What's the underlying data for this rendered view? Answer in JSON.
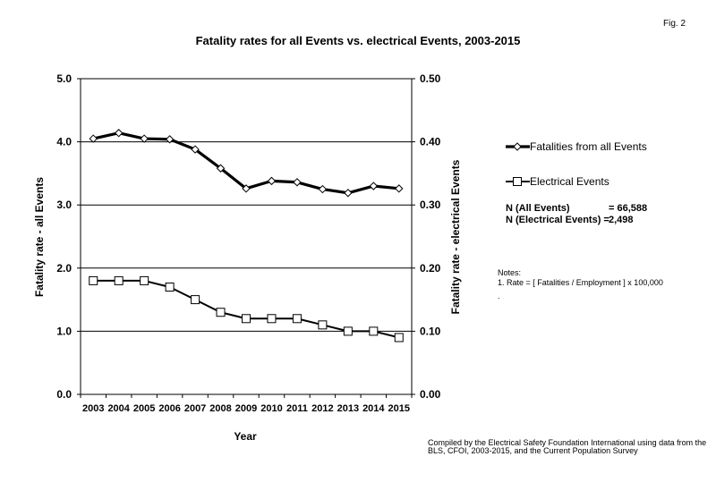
{
  "figure_label": "Fig. 2",
  "chart_data": {
    "type": "line",
    "title": "Fatality rates for all Events vs. electrical Events, 2003-2015",
    "xlabel": "Year",
    "ylabel_left": "Fatality rate - all Events",
    "ylabel_right": "Fatality rate - electrical Events",
    "x": [
      "2003",
      "2004",
      "2005",
      "2006",
      "2007",
      "2008",
      "2009",
      "2010",
      "2011",
      "2012",
      "2013",
      "2014",
      "2015"
    ],
    "y_left_ticks": [
      "0.0",
      "1.0",
      "2.0",
      "3.0",
      "4.0",
      "5.0"
    ],
    "y_right_ticks": [
      "0.00",
      "0.10",
      "0.20",
      "0.30",
      "0.40",
      "0.50"
    ],
    "ylim_left": [
      0,
      5
    ],
    "ylim_right": [
      0,
      0.5
    ],
    "grid": "horizontal",
    "series": [
      {
        "name": "Fatalities from all Events",
        "axis": "left",
        "marker": "diamond",
        "line_weight": "heavy",
        "values": [
          4.05,
          4.14,
          4.05,
          4.04,
          3.88,
          3.58,
          3.26,
          3.38,
          3.36,
          3.25,
          3.19,
          3.3,
          3.26
        ]
      },
      {
        "name": "Electrical Events",
        "axis": "right",
        "marker": "square",
        "line_weight": "normal",
        "values": [
          0.18,
          0.18,
          0.18,
          0.17,
          0.15,
          0.13,
          0.12,
          0.12,
          0.12,
          0.11,
          0.1,
          0.1,
          0.09
        ]
      }
    ],
    "legend_placement": "right"
  },
  "summary": {
    "n_all_label": "N (All Events)",
    "n_all_value": "= 66,588",
    "n_elec_label": "N (Electrical Events) =",
    "n_elec_value": "2,498"
  },
  "notes": {
    "title": "Notes:",
    "item": "1.  Rate = [ Fatalities / Employment ] x 100,000",
    "trailing": "."
  },
  "source": "Compiled by the Electrical Safety Foundation International using data from the BLS, CFOI, 2003-2015, and the Current Population Survey"
}
